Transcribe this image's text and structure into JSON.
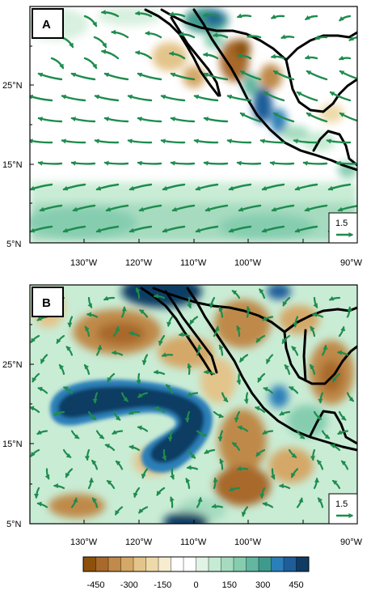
{
  "panels": [
    {
      "letter": "A",
      "reference_vector": "1.5",
      "y_ticks": [
        "5°N",
        "15°N",
        "25°N"
      ],
      "x_ticks": [
        "130°W",
        "120°W",
        "110°W",
        "100°W",
        "90°W"
      ]
    },
    {
      "letter": "B",
      "reference_vector": "1.5",
      "y_ticks": [
        "5°N",
        "15°N",
        "25°N"
      ],
      "x_ticks": [
        "130°W",
        "120°W",
        "110°W",
        "100°W",
        "90°W"
      ]
    }
  ],
  "colorbar": {
    "tick_labels": [
      "-450",
      "-300",
      "-150",
      "0",
      "150",
      "300",
      "450"
    ],
    "colors": [
      "#8c510a",
      "#a8692a",
      "#bf8a4a",
      "#d4a867",
      "#e3c48a",
      "#eedaa9",
      "#f6ecd0",
      "#ffffff",
      "#ffffff",
      "#e0f3e4",
      "#c6ebd3",
      "#a6dbc0",
      "#86cdb0",
      "#63b6a0",
      "#3f9a8e",
      "#2b7fb8",
      "#1f5d99",
      "#0f3c63"
    ]
  },
  "colors": {
    "arrow": "#1e8c4e",
    "coast": "#000000"
  }
}
